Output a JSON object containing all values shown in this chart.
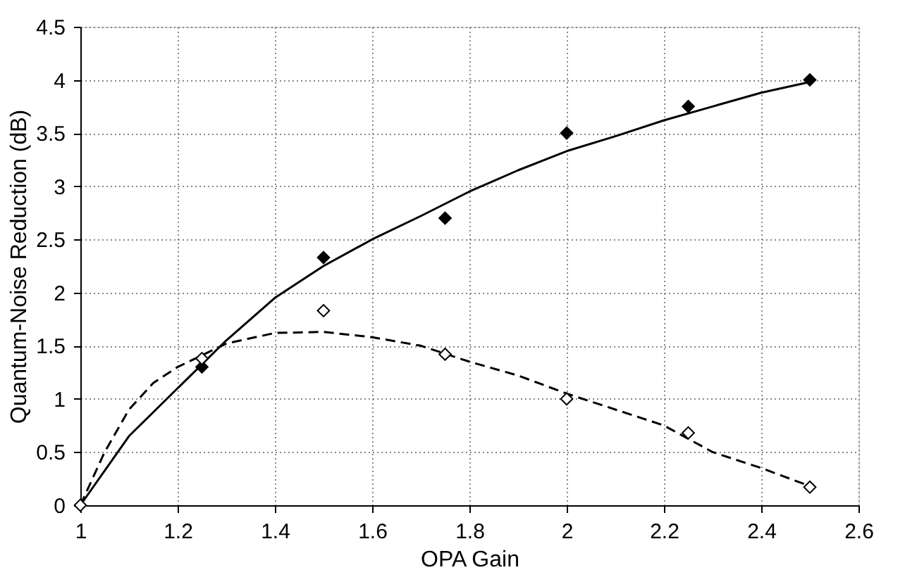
{
  "chart_data": {
    "type": "scatter",
    "xlabel": "OPA Gain",
    "ylabel": "Quantum-Noise Reduction (dB)",
    "xlim": [
      1,
      2.6
    ],
    "xticks": [
      1,
      1.2,
      1.4,
      1.6,
      1.8,
      2,
      2.2,
      2.4,
      2.6
    ],
    "ylim": [
      0,
      4.5
    ],
    "yticks": [
      0,
      0.5,
      1,
      1.5,
      2,
      2.5,
      3,
      3.5,
      4,
      4.5
    ],
    "grid": true,
    "series": [
      {
        "type": "line",
        "line_style": "solid",
        "marker": "none",
        "color": "#000000",
        "x": [
          1,
          1.1,
          1.2,
          1.3,
          1.4,
          1.5,
          1.6,
          1.7,
          1.8,
          1.9,
          2.0,
          2.1,
          2.2,
          2.3,
          2.4,
          2.5
        ],
        "values": [
          0,
          0.65,
          1.1,
          1.55,
          1.95,
          2.25,
          2.5,
          2.72,
          2.95,
          3.15,
          3.33,
          3.47,
          3.62,
          3.75,
          3.88,
          3.98
        ]
      },
      {
        "type": "line",
        "line_style": "dashed",
        "marker": "none",
        "color": "#000000",
        "x": [
          1,
          1.05,
          1.1,
          1.15,
          1.2,
          1.3,
          1.4,
          1.5,
          1.6,
          1.7,
          1.8,
          1.9,
          2.0,
          2.1,
          2.2,
          2.3,
          2.4,
          2.5
        ],
        "values": [
          0,
          0.5,
          0.9,
          1.15,
          1.3,
          1.52,
          1.62,
          1.63,
          1.58,
          1.5,
          1.35,
          1.22,
          1.05,
          0.9,
          0.75,
          0.5,
          0.35,
          0.18
        ]
      },
      {
        "marker": "diamond",
        "color": "#000000",
        "x": [
          1.25,
          1.5,
          1.75,
          2.0,
          2.25,
          2.5
        ],
        "values": [
          1.3,
          2.33,
          2.7,
          3.5,
          3.75,
          4.0
        ]
      },
      {
        "marker": "diamond",
        "color": "#ffffff",
        "x": [
          1,
          1.25,
          1.5,
          1.75,
          2.0,
          2.25,
          2.5
        ],
        "values": [
          0,
          1.38,
          1.83,
          1.42,
          1.0,
          0.68,
          0.17
        ]
      }
    ]
  }
}
